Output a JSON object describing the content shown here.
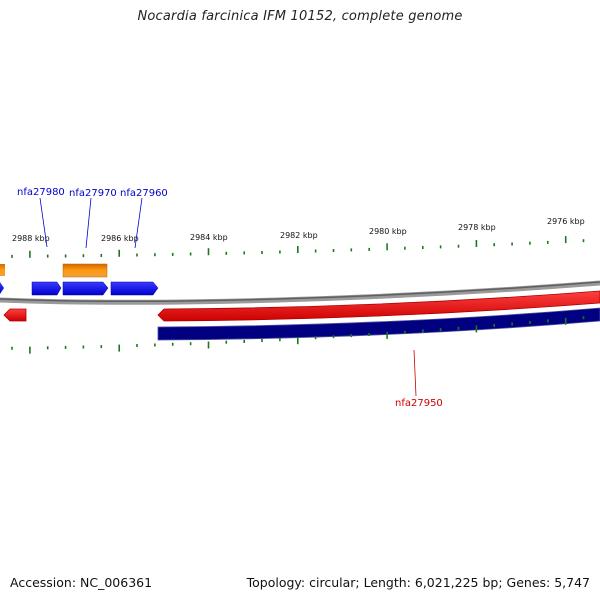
{
  "title": "Nocardia farcinica IFM 10152, complete genome",
  "accession_text": "Accession: NC_006361",
  "summary_text": "Topology: circular; Length: 6,021,225 bp; Genes: 5,747",
  "ticks": [
    "2988 kbp",
    "2986 kbp",
    "2984 kbp",
    "2982 kbp",
    "2980 kbp",
    "2978 kbp",
    "2976 kbp"
  ],
  "genes": [
    {
      "label": "nfa27980",
      "color": "#0000cc"
    },
    {
      "label": "nfa27970",
      "color": "#0000cc"
    },
    {
      "label": "nfa27960",
      "color": "#0000cc"
    },
    {
      "label": "nfa27950",
      "color": "#cc0000"
    }
  ],
  "colors": {
    "forward_cds": "#0000ee",
    "forward_orange": "#f08a00",
    "reverse_cds": "#ee0000",
    "backbone": "#808080",
    "navy_band": "#000080",
    "ticks": "#1a7a1a"
  }
}
